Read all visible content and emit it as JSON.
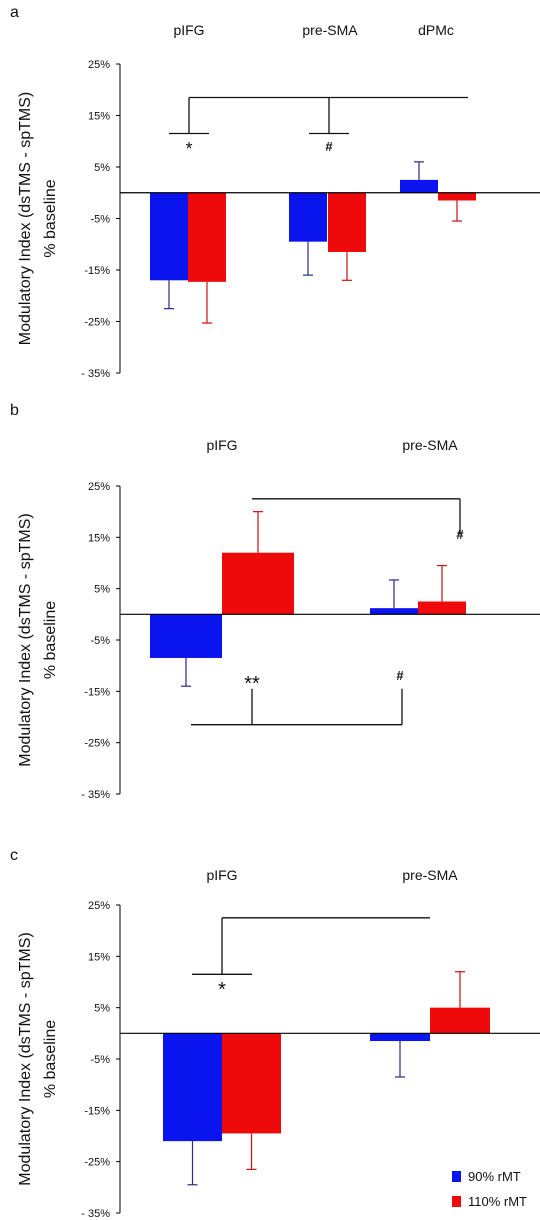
{
  "chart_data": [
    {
      "type": "bar",
      "panel_label": "a",
      "categories": [
        "pIFG",
        "pre-SMA",
        "dPMc"
      ],
      "ylabel_line1": "Modulatory Index (dsTMS - spTMS)",
      "ylabel_line2": "% baseline",
      "ylim": [
        -35,
        25
      ],
      "yticks": [
        25,
        15,
        5,
        -5,
        -15,
        -25,
        -35
      ],
      "ytick_labels": [
        "25%",
        "15%",
        "5%",
        "-5%",
        "-15%",
        "-25%",
        "- 35%"
      ],
      "series": [
        {
          "name": "90% rMT",
          "color": "#0a14ee",
          "values": [
            -17,
            -9.5,
            2.5
          ],
          "errors": [
            5.5,
            6.5,
            3.5
          ]
        },
        {
          "name": "110% rMT",
          "color": "#ee0a0a",
          "values": [
            -17.3,
            -11.5,
            -1.5
          ],
          "errors": [
            8,
            5.5,
            4
          ]
        }
      ],
      "annotations": [
        {
          "text": "*",
          "group": 0,
          "value": 8.5
        },
        {
          "text": "#",
          "group": 1,
          "value": 8.5
        }
      ],
      "brackets": [
        {
          "from_group": 0,
          "to_group": 2,
          "level": 18.5,
          "drops": [
            {
              "group": 0,
              "to": 11.5
            },
            {
              "group": 1,
              "to": 11.5
            }
          ]
        }
      ]
    },
    {
      "type": "bar",
      "panel_label": "b",
      "categories": [
        "pIFG",
        "pre-SMA"
      ],
      "ylabel_line1": "Modulatory Index (dsTMS - spTMS)",
      "ylabel_line2": "% baseline",
      "ylim": [
        -35,
        25
      ],
      "yticks": [
        25,
        15,
        5,
        -5,
        -15,
        -25,
        -35
      ],
      "ytick_labels": [
        "25%",
        "15%",
        "5%",
        "-5%",
        "-15%",
        "-25%",
        "- 35%"
      ],
      "series": [
        {
          "name": "90% rMT",
          "color": "#0a14ee",
          "values": [
            -8.5,
            1.2
          ],
          "errors": [
            5.5,
            5.5
          ]
        },
        {
          "name": "110% rMT",
          "color": "#ee0a0a",
          "values": [
            12,
            2.5
          ],
          "errors": [
            8,
            7
          ]
        }
      ],
      "annotations": [
        {
          "text": "#",
          "group": 1,
          "bar": 1,
          "value": 12.5
        },
        {
          "text": "**",
          "group": 0,
          "bar": 1,
          "value": -13
        },
        {
          "text": "#",
          "group": 1,
          "bar": 0,
          "value": -13
        }
      ],
      "brackets": [
        {
          "level": 22.5,
          "x_from": {
            "group": 0,
            "bar": 1
          },
          "x_to": {
            "group": 1,
            "bar": 1
          },
          "drop_end": 15.5
        },
        {
          "level": -21.5,
          "x_from": {
            "group": 0,
            "bar": 0
          },
          "x_to": {
            "group": 1,
            "bar": 0
          },
          "rises": [
            -14.5,
            -14.5
          ]
        }
      ]
    },
    {
      "type": "bar",
      "panel_label": "c",
      "categories": [
        "pIFG",
        "pre-SMA"
      ],
      "ylabel_line1": "Modulatory Index (dsTMS - spTMS)",
      "ylabel_line2": "% baseline",
      "ylim": [
        -35,
        25
      ],
      "yticks": [
        25,
        15,
        5,
        -5,
        -15,
        -25,
        -35
      ],
      "ytick_labels": [
        "25%",
        "15%",
        "5%",
        "-5%",
        "-15%",
        "-25%",
        "- 35%"
      ],
      "series": [
        {
          "name": "90% rMT",
          "color": "#0a14ee",
          "values": [
            -21,
            -1.5
          ],
          "errors": [
            8.5,
            7
          ]
        },
        {
          "name": "110% rMT",
          "color": "#ee0a0a",
          "values": [
            -19.5,
            5
          ],
          "errors": [
            7,
            7
          ]
        }
      ],
      "annotations": [
        {
          "text": "*",
          "group": 0,
          "value": 8.5
        }
      ],
      "brackets": [
        {
          "level": 22.5,
          "x_from": {
            "group": 0
          },
          "x_to": {
            "group": 1,
            "bar": 1
          },
          "drop_to": 11.5,
          "drop_center": true
        }
      ],
      "legend": {
        "placement": "bottom-right",
        "entries": [
          "90% rMT",
          "110% rMT"
        ]
      }
    }
  ]
}
